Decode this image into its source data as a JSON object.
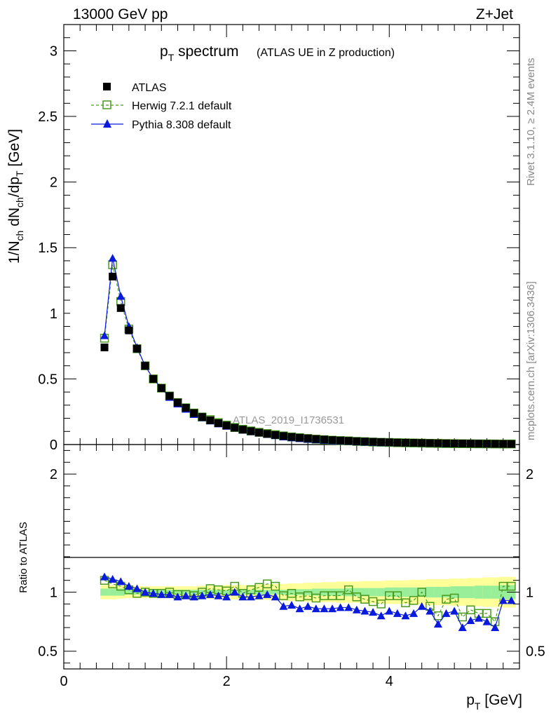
{
  "header": {
    "left": "13000 GeV pp",
    "right": "Z+Jet"
  },
  "title": {
    "main": "p",
    "main_sub": "T",
    "main_rest": " spectrum",
    "small": "(ATLAS UE in Z production)"
  },
  "side_labels": {
    "rivet": "Rivet 3.1.10, ≥ 2.4M events",
    "mcplots": "mcplots.cern.ch [arXiv:1306.3436]"
  },
  "watermark": "ATLAS_2019_I1736531",
  "legend": [
    {
      "name": "ATLAS",
      "color": "#000000",
      "marker": "filled-square"
    },
    {
      "name": "Herwig 7.2.1 default",
      "color": "#4a9a1f",
      "marker": "open-square"
    },
    {
      "name": "Pythia 8.308 default",
      "color": "#0a1adc",
      "marker": "filled-triangle"
    }
  ],
  "chart_data": [
    {
      "type": "line",
      "panel": "main",
      "ylabel": "1/N_ch dN_ch/dp_T [GeV]",
      "xlim": [
        0,
        5.6
      ],
      "ylim": [
        0,
        3.2
      ],
      "yticks": [
        "0",
        "0.5",
        "1",
        "1.5",
        "2",
        "2.5",
        "3"
      ],
      "x": [
        0.5,
        0.6,
        0.7,
        0.8,
        0.9,
        1.0,
        1.1,
        1.2,
        1.3,
        1.4,
        1.5,
        1.6,
        1.7,
        1.8,
        1.9,
        2.0,
        2.1,
        2.2,
        2.3,
        2.4,
        2.5,
        2.6,
        2.7,
        2.8,
        2.9,
        3.0,
        3.1,
        3.2,
        3.3,
        3.4,
        3.5,
        3.6,
        3.7,
        3.8,
        3.9,
        4.0,
        4.1,
        4.2,
        4.3,
        4.4,
        4.5,
        4.6,
        4.7,
        4.8,
        4.9,
        5.0,
        5.1,
        5.2,
        5.3,
        5.4,
        5.5
      ],
      "series": [
        {
          "name": "ATLAS",
          "values": [
            0.74,
            1.28,
            1.04,
            0.87,
            0.73,
            0.6,
            0.5,
            0.43,
            0.37,
            0.32,
            0.28,
            0.24,
            0.21,
            0.185,
            0.163,
            0.145,
            0.128,
            0.114,
            0.102,
            0.091,
            0.081,
            0.073,
            0.065,
            0.058,
            0.052,
            0.047,
            0.042,
            0.038,
            0.034,
            0.031,
            0.028,
            0.025,
            0.023,
            0.021,
            0.019,
            0.017,
            0.015,
            0.014,
            0.013,
            0.012,
            0.011,
            0.01,
            0.009,
            0.008,
            0.0075,
            0.007,
            0.0065,
            0.006,
            0.0055,
            0.005,
            0.0045
          ]
        },
        {
          "name": "Herwig 7.2.1 default",
          "values": [
            0.81,
            1.37,
            1.09,
            0.88,
            0.73,
            0.6,
            0.5,
            0.43,
            0.37,
            0.32,
            0.28,
            0.24,
            0.21,
            0.19,
            0.167,
            0.148,
            0.13,
            0.116,
            0.104,
            0.093,
            0.084,
            0.075,
            0.066,
            0.058,
            0.052,
            0.046,
            0.041,
            0.037,
            0.033,
            0.03,
            0.028,
            0.024,
            0.022,
            0.019,
            0.017,
            0.016,
            0.014,
            0.013,
            0.012,
            0.011,
            0.0095,
            0.0085,
            0.0075,
            0.007,
            0.0065,
            0.006,
            0.0055,
            0.005,
            0.0045,
            0.004,
            0.0045
          ]
        },
        {
          "name": "Pythia 8.308 default",
          "values": [
            0.83,
            1.42,
            1.13,
            0.9,
            0.74,
            0.6,
            0.5,
            0.43,
            0.36,
            0.31,
            0.27,
            0.23,
            0.205,
            0.18,
            0.158,
            0.14,
            0.127,
            0.111,
            0.098,
            0.088,
            0.078,
            0.069,
            0.059,
            0.052,
            0.046,
            0.041,
            0.037,
            0.033,
            0.029,
            0.027,
            0.024,
            0.021,
            0.019,
            0.017,
            0.015,
            0.014,
            0.013,
            0.012,
            0.011,
            0.01,
            0.009,
            0.008,
            0.007,
            0.006,
            0.0055,
            0.0052,
            0.005,
            0.0045,
            0.004,
            0.0035,
            0.004
          ]
        }
      ]
    },
    {
      "type": "line",
      "panel": "ratio",
      "xlabel": "p_T [GeV]",
      "ylabel": "Ratio to ATLAS",
      "xlim": [
        0,
        5.6
      ],
      "ylim": [
        0.35,
        2.25
      ],
      "xticks": [
        "0",
        "2",
        "4"
      ],
      "yticks": [
        "0.5",
        "1",
        "2"
      ],
      "x": [
        0.5,
        0.6,
        0.7,
        0.8,
        0.9,
        1.0,
        1.1,
        1.2,
        1.3,
        1.4,
        1.5,
        1.6,
        1.7,
        1.8,
        1.9,
        2.0,
        2.1,
        2.2,
        2.3,
        2.4,
        2.5,
        2.6,
        2.7,
        2.8,
        2.9,
        3.0,
        3.1,
        3.2,
        3.3,
        3.4,
        3.5,
        3.6,
        3.7,
        3.8,
        3.9,
        4.0,
        4.1,
        4.2,
        4.3,
        4.4,
        4.5,
        4.6,
        4.7,
        4.8,
        4.9,
        5.0,
        5.1,
        5.2,
        5.3,
        5.4,
        5.5
      ],
      "band_stat": [
        0.03,
        0.03,
        0.03,
        0.02,
        0.02,
        0.02,
        0.02,
        0.02,
        0.02,
        0.02,
        0.02,
        0.02,
        0.02,
        0.02,
        0.02,
        0.02,
        0.02,
        0.02,
        0.02,
        0.02,
        0.02,
        0.02,
        0.02,
        0.025,
        0.025,
        0.025,
        0.03,
        0.03,
        0.03,
        0.03,
        0.035,
        0.035,
        0.035,
        0.035,
        0.035,
        0.04,
        0.04,
        0.04,
        0.04,
        0.04,
        0.045,
        0.045,
        0.045,
        0.05,
        0.05,
        0.05,
        0.055,
        0.055,
        0.055,
        0.06,
        0.06
      ],
      "band_total": [
        0.06,
        0.06,
        0.055,
        0.05,
        0.05,
        0.05,
        0.05,
        0.05,
        0.05,
        0.05,
        0.05,
        0.05,
        0.055,
        0.055,
        0.055,
        0.06,
        0.06,
        0.06,
        0.06,
        0.065,
        0.065,
        0.07,
        0.07,
        0.075,
        0.075,
        0.08,
        0.08,
        0.085,
        0.085,
        0.09,
        0.09,
        0.09,
        0.095,
        0.095,
        0.095,
        0.1,
        0.1,
        0.1,
        0.105,
        0.105,
        0.11,
        0.11,
        0.11,
        0.115,
        0.115,
        0.12,
        0.12,
        0.125,
        0.125,
        0.13,
        0.13
      ],
      "series": [
        {
          "name": "Herwig 7.2.1 default",
          "values": [
            1.1,
            1.07,
            1.05,
            1.02,
            0.99,
            1.0,
            0.99,
            0.99,
            1.0,
            0.98,
            0.98,
            0.97,
            1.0,
            1.03,
            1.02,
            1.01,
            1.05,
            0.99,
            1.02,
            1.04,
            1.07,
            1.05,
            0.97,
            0.99,
            0.96,
            0.97,
            0.95,
            0.97,
            0.97,
            0.97,
            1.02,
            0.96,
            0.94,
            0.92,
            0.9,
            0.97,
            0.97,
            0.91,
            0.93,
            1.0,
            0.88,
            0.8,
            0.94,
            0.95,
            0.79,
            0.85,
            0.82,
            0.82,
            0.75,
            1.05,
            1.05
          ]
        },
        {
          "name": "Pythia 8.308 default",
          "values": [
            1.13,
            1.11,
            1.09,
            1.05,
            1.03,
            1.0,
            0.99,
            0.98,
            0.98,
            0.96,
            0.97,
            0.96,
            0.97,
            0.98,
            0.97,
            0.96,
            1.0,
            0.96,
            0.96,
            0.97,
            0.98,
            0.96,
            0.88,
            0.89,
            0.86,
            0.88,
            0.86,
            0.86,
            0.86,
            0.87,
            0.87,
            0.85,
            0.84,
            0.83,
            0.8,
            0.84,
            0.82,
            0.8,
            0.82,
            0.88,
            0.84,
            0.73,
            0.82,
            0.84,
            0.7,
            0.76,
            0.78,
            0.75,
            0.7,
            0.93,
            0.93
          ]
        }
      ]
    }
  ]
}
